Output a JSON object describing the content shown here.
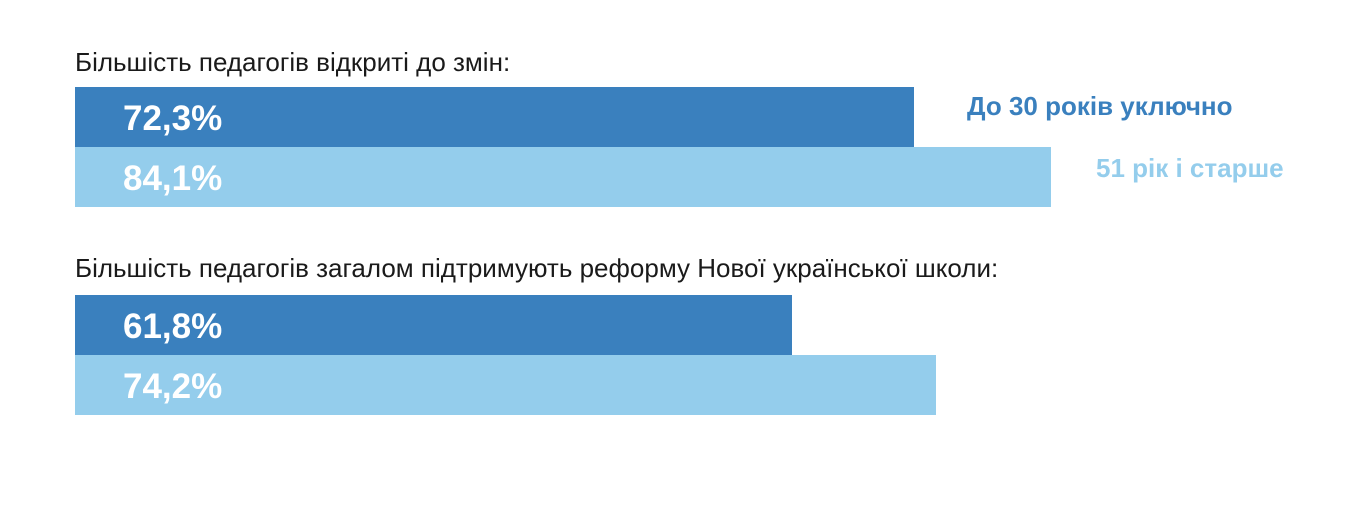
{
  "colors": {
    "series_young": "#3a80be",
    "series_old": "#94cdec",
    "title_text": "#1a1a1a"
  },
  "chart_data": {
    "type": "bar",
    "orientation": "horizontal",
    "unit": "%",
    "xlim": [
      0,
      100
    ],
    "legend": {
      "placement": "top-right",
      "entries": [
        "До 30 років уключно",
        "51 рік і старше"
      ]
    },
    "groups": [
      {
        "title": "Більшість педагогів відкриті до змін:",
        "bars": [
          {
            "series": "До 30 років уключно",
            "value": 72.3,
            "label": "72,3%"
          },
          {
            "series": "51 рік і старше",
            "value": 84.1,
            "label": "84,1%"
          }
        ]
      },
      {
        "title": "Більшість педагогів загалом підтримують реформу Нової української школи:",
        "bars": [
          {
            "series": "До 30 років уключно",
            "value": 61.8,
            "label": "61,8%"
          },
          {
            "series": "51 рік і старше",
            "value": 74.2,
            "label": "74,2%"
          }
        ]
      }
    ]
  }
}
